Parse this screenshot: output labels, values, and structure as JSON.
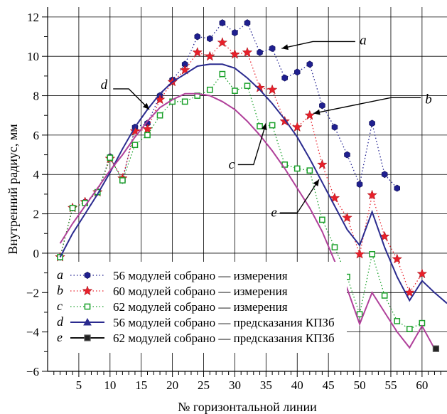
{
  "chart_data": {
    "type": "line",
    "xlabel": "№ горизонтальной линии",
    "ylabel": "Внутренний радиус, мм",
    "xlim": [
      0,
      64
    ],
    "ylim": [
      -6,
      12.5
    ],
    "xticks": [
      5,
      10,
      15,
      20,
      25,
      30,
      35,
      40,
      45,
      50,
      55,
      60
    ],
    "yticks": [
      -6,
      -4,
      -2,
      0,
      2,
      4,
      6,
      8,
      10,
      12
    ],
    "grid": true,
    "legend_position": "bottom-left",
    "series": [
      {
        "key": "a",
        "name": "56 модулей собрано — измерения",
        "style": "dotted-markers",
        "marker": "hexagon",
        "color": "#1f1f8f",
        "x": [
          2,
          4,
          6,
          8,
          10,
          12,
          14,
          16,
          18,
          20,
          22,
          24,
          26,
          28,
          30,
          32,
          34,
          36,
          38,
          40,
          42,
          44,
          46,
          48,
          50,
          52,
          54,
          56
        ],
        "y": [
          -0.2,
          2.3,
          2.6,
          3.1,
          4.9,
          3.7,
          6.4,
          6.6,
          8.0,
          8.8,
          9.6,
          11.0,
          10.9,
          11.7,
          11.2,
          11.7,
          10.2,
          10.4,
          8.9,
          9.2,
          9.6,
          7.5,
          6.4,
          5.0,
          3.5,
          6.6,
          4.0,
          3.3
        ]
      },
      {
        "key": "b",
        "name": "60 модулей собрано — измерения",
        "style": "dotted-markers",
        "marker": "star",
        "color": "#e8202a",
        "x": [
          2,
          4,
          6,
          8,
          10,
          12,
          14,
          16,
          18,
          20,
          22,
          24,
          26,
          28,
          30,
          32,
          34,
          36,
          38,
          40,
          42,
          44,
          46,
          48,
          50,
          52,
          54,
          56,
          58,
          60
        ],
        "y": [
          -0.2,
          2.3,
          2.6,
          3.1,
          4.8,
          3.8,
          6.2,
          6.3,
          7.8,
          8.7,
          9.3,
          10.2,
          10.0,
          10.7,
          10.1,
          10.2,
          8.4,
          8.3,
          6.7,
          6.4,
          7.0,
          4.5,
          2.8,
          1.8,
          -0.05,
          2.95,
          0.85,
          -0.3,
          -2.0,
          -1.05
        ]
      },
      {
        "key": "c",
        "name": "62 модулей собрано — измерения",
        "style": "dotted-markers",
        "marker": "square",
        "color": "#1aa02a",
        "x": [
          2,
          4,
          6,
          8,
          10,
          12,
          14,
          16,
          18,
          20,
          22,
          24,
          26,
          28,
          30,
          32,
          34,
          36,
          38,
          40,
          42,
          44,
          46,
          48,
          50,
          52,
          54,
          56,
          58,
          60
        ],
        "y": [
          -0.2,
          2.3,
          2.55,
          3.1,
          4.85,
          3.7,
          5.5,
          6.0,
          7.0,
          7.7,
          7.7,
          8.0,
          8.3,
          9.1,
          8.25,
          8.5,
          6.45,
          6.5,
          4.5,
          4.3,
          4.2,
          1.7,
          0.3,
          -1.2,
          -3.1,
          -0.05,
          -2.15,
          -3.45,
          -3.85,
          -3.55
        ]
      },
      {
        "key": "d",
        "name": "56 модулей собрано — предсказания КПЗб",
        "style": "solid-line",
        "marker": "triangle",
        "color": "#2b2b8f",
        "x": [
          2,
          4,
          6,
          8,
          10,
          12,
          14,
          16,
          18,
          20,
          22,
          24,
          26,
          28,
          30,
          32,
          34,
          36,
          38,
          40,
          42,
          44,
          46,
          48,
          50,
          52,
          54,
          56,
          58,
          60,
          62,
          64
        ],
        "y": [
          -0.2,
          1.0,
          2.0,
          3.0,
          4.1,
          5.3,
          6.4,
          7.3,
          8.1,
          8.7,
          9.1,
          9.5,
          9.6,
          9.6,
          9.4,
          8.9,
          8.3,
          7.6,
          6.8,
          5.9,
          4.8,
          3.6,
          2.4,
          1.2,
          0.4,
          2.1,
          0.3,
          -1.2,
          -2.4,
          -1.4,
          -2.0,
          -2.55
        ]
      },
      {
        "key": "e",
        "name": "62 модулей собрано — предсказания КПЗб",
        "style": "solid-line",
        "marker": "filled-square",
        "color": "#b0409a",
        "x": [
          2,
          4,
          6,
          8,
          10,
          12,
          14,
          16,
          18,
          20,
          22,
          24,
          26,
          28,
          30,
          32,
          34,
          36,
          38,
          40,
          42,
          44,
          46,
          48,
          50,
          52,
          54,
          56,
          58,
          60,
          62
        ],
        "y": [
          0.5,
          1.5,
          2.4,
          3.3,
          4.2,
          5.0,
          5.9,
          6.7,
          7.4,
          7.8,
          8.1,
          8.1,
          8.0,
          7.7,
          7.3,
          6.7,
          6.0,
          5.2,
          4.3,
          3.3,
          2.3,
          1.1,
          -0.4,
          -1.8,
          -3.6,
          -2.0,
          -3.0,
          -4.0,
          -4.8,
          -3.7,
          -4.85
        ]
      }
    ],
    "annotations": [
      {
        "label": "a",
        "points_to_series": "a"
      },
      {
        "label": "b",
        "points_to_series": "b"
      },
      {
        "label": "c",
        "points_to_series": "c"
      },
      {
        "label": "d",
        "points_to_series": "d"
      },
      {
        "label": "e",
        "points_to_series": "e"
      }
    ],
    "legend": [
      {
        "key": "a",
        "text": "56 модулей собрано — измерения"
      },
      {
        "key": "b",
        "text": "60 модулей собрано — измерения"
      },
      {
        "key": "c",
        "text": "62 модулей собрано — измерения"
      },
      {
        "key": "d",
        "text": "56 модулей собрано — предсказания КПЗб"
      },
      {
        "key": "e",
        "text": "62 модулей собрано — предсказания КПЗб"
      }
    ]
  }
}
